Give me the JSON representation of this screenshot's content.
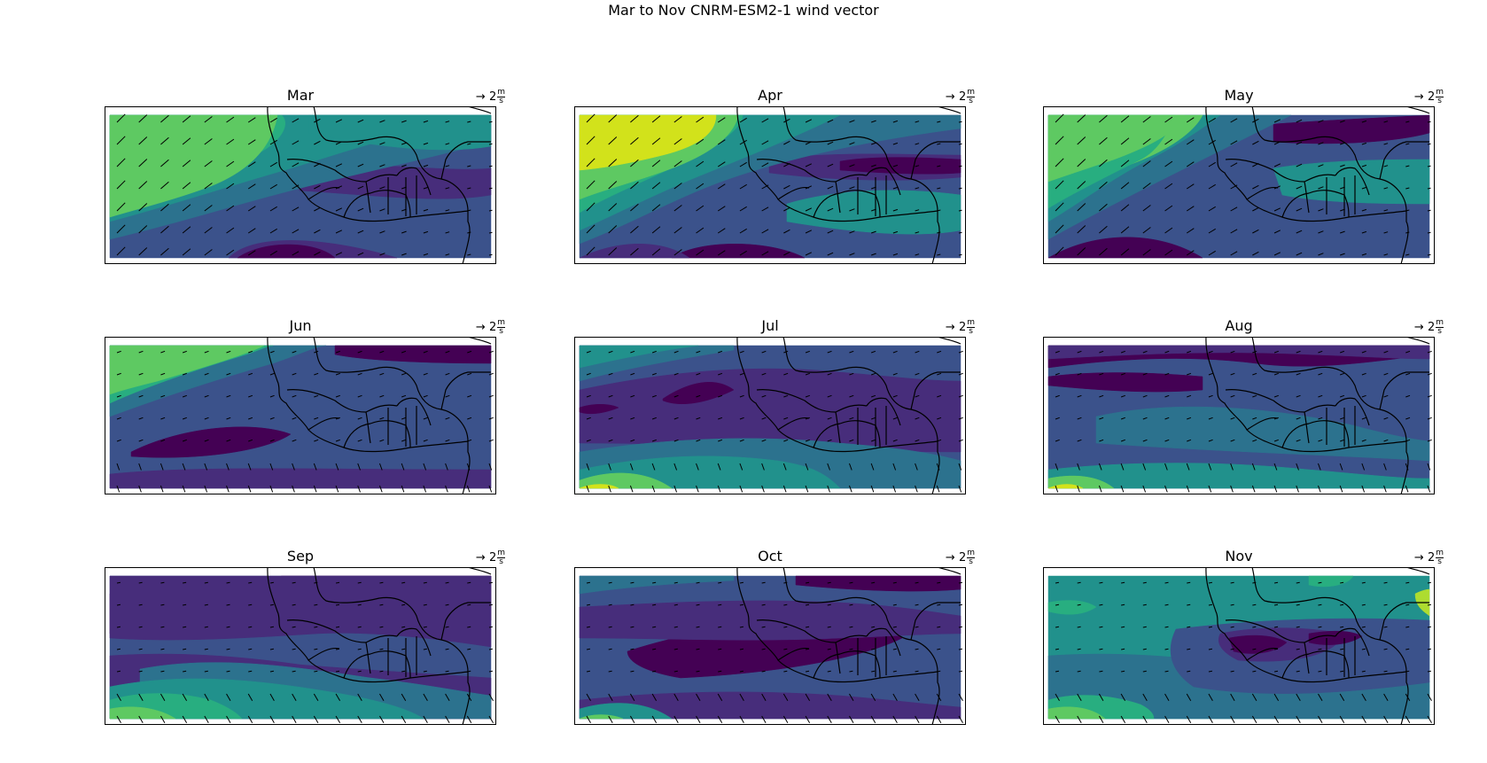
{
  "figure": {
    "title": "Mar to Nov CNRM-ESM2-1 wind vector"
  },
  "quiver_key": {
    "value": "2",
    "unit_num": "m",
    "unit_den": "s"
  },
  "palette": [
    "#440154",
    "#472d7b",
    "#3b528b",
    "#2c728e",
    "#21918c",
    "#28ae80",
    "#5ec962",
    "#addc30",
    "#d2e21b"
  ],
  "chart_data": [
    {
      "type": "contourf",
      "panel": "Mar",
      "title": "Mar"
    },
    {
      "type": "contourf",
      "panel": "Apr",
      "title": "Apr"
    },
    {
      "type": "contourf",
      "panel": "May",
      "title": "May"
    },
    {
      "type": "contourf",
      "panel": "Jun",
      "title": "Jun"
    },
    {
      "type": "contourf",
      "panel": "Jul",
      "title": "Jul"
    },
    {
      "type": "contourf",
      "panel": "Aug",
      "title": "Aug"
    },
    {
      "type": "contourf",
      "panel": "Sep",
      "title": "Sep"
    },
    {
      "type": "contourf",
      "panel": "Oct",
      "title": "Oct"
    },
    {
      "type": "contourf",
      "panel": "Nov",
      "title": "Nov"
    }
  ]
}
